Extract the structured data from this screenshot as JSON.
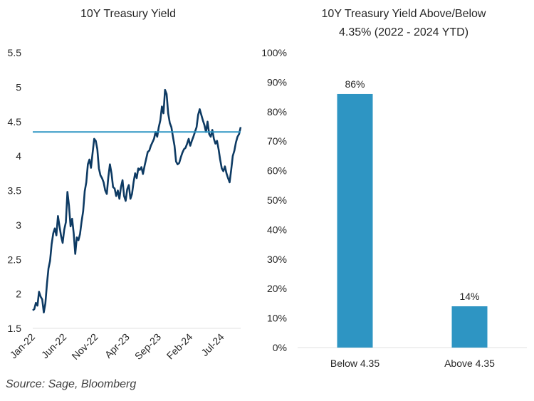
{
  "source_note": "Source: Sage, Bloomberg",
  "colors": {
    "yield_line": "#0d3a63",
    "threshold_line": "#2e95c3",
    "bar": "#2e95c3",
    "gridline": "#e0e0e0"
  },
  "chart_data": [
    {
      "type": "line",
      "title": "10Y Treasury Yield",
      "xlabel": "",
      "ylabel": "",
      "ylim": [
        1.5,
        5.5
      ],
      "yticks": [
        "1.5",
        "2",
        "2.5",
        "3",
        "3.5",
        "4",
        "4.5",
        "5",
        "5.5"
      ],
      "ytick_values": [
        1.5,
        2,
        2.5,
        3,
        3.5,
        4,
        4.5,
        5,
        5.5
      ],
      "xticks": [
        "Jan-22",
        "Jun-22",
        "Nov-22",
        "Apr-23",
        "Sep-23",
        "Feb-24",
        "Jul-24"
      ],
      "xtick_months": [
        0,
        5,
        10,
        15,
        20,
        25,
        30
      ],
      "xlim_months": [
        0,
        33
      ],
      "x_unit": "months since Jan-2022",
      "grid": false,
      "legend": "none",
      "series": [
        {
          "name": "10Y Treasury Yield",
          "x": [
            0,
            0.25,
            0.5,
            0.75,
            1,
            1.25,
            1.5,
            1.75,
            2,
            2.25,
            2.5,
            2.75,
            3,
            3.25,
            3.5,
            3.75,
            4,
            4.25,
            4.5,
            4.75,
            5,
            5.25,
            5.5,
            5.75,
            6,
            6.25,
            6.5,
            6.75,
            7,
            7.25,
            7.5,
            7.75,
            8,
            8.25,
            8.5,
            8.75,
            9,
            9.25,
            9.5,
            9.75,
            10,
            10.25,
            10.5,
            10.75,
            11,
            11.25,
            11.5,
            11.75,
            12,
            12.25,
            12.5,
            12.75,
            13,
            13.25,
            13.5,
            13.75,
            14,
            14.25,
            14.5,
            14.75,
            15,
            15.25,
            15.5,
            15.75,
            16,
            16.25,
            16.5,
            16.75,
            17,
            17.25,
            17.5,
            17.75,
            18,
            18.25,
            18.5,
            18.75,
            19,
            19.25,
            19.5,
            19.75,
            20,
            20.25,
            20.5,
            20.75,
            21,
            21.25,
            21.5,
            21.75,
            22,
            22.25,
            22.5,
            22.75,
            23,
            23.25,
            23.5,
            23.75,
            24,
            24.25,
            24.5,
            24.75,
            25,
            25.25,
            25.5,
            25.75,
            26,
            26.25,
            26.5,
            26.75,
            27,
            27.25,
            27.5,
            27.75,
            28,
            28.25,
            28.5,
            28.75,
            29,
            29.25,
            29.5,
            29.75,
            30,
            30.25,
            30.5,
            30.75,
            31,
            31.25,
            31.5,
            31.75,
            32,
            32.25,
            32.5,
            32.75,
            33
          ],
          "y": [
            1.76,
            1.78,
            1.87,
            1.83,
            2.03,
            1.96,
            1.92,
            1.73,
            1.86,
            2.14,
            2.37,
            2.48,
            2.72,
            2.88,
            2.95,
            2.85,
            3.13,
            2.98,
            2.84,
            2.74,
            2.93,
            3.04,
            3.48,
            3.28,
            2.98,
            3.09,
            2.88,
            2.58,
            2.82,
            2.78,
            2.87,
            3.05,
            3.2,
            3.49,
            3.62,
            3.88,
            3.95,
            3.83,
            4.05,
            4.25,
            4.22,
            4.1,
            3.82,
            3.72,
            3.68,
            3.62,
            3.5,
            3.45,
            3.7,
            3.88,
            3.75,
            3.55,
            3.53,
            3.42,
            3.5,
            3.38,
            3.55,
            3.65,
            3.42,
            3.35,
            3.52,
            3.58,
            3.38,
            3.45,
            3.62,
            3.75,
            3.68,
            3.82,
            3.8,
            3.84,
            3.74,
            3.86,
            3.96,
            4.06,
            4.08,
            4.15,
            4.2,
            4.25,
            4.35,
            4.28,
            4.42,
            4.52,
            4.72,
            4.62,
            4.96,
            4.9,
            4.62,
            4.48,
            4.42,
            4.28,
            4.15,
            3.92,
            3.88,
            3.9,
            3.98,
            4.05,
            4.1,
            4.12,
            4.18,
            4.25,
            4.15,
            4.22,
            4.28,
            4.35,
            4.42,
            4.6,
            4.68,
            4.6,
            4.52,
            4.45,
            4.35,
            4.5,
            4.32,
            4.28,
            4.38,
            4.25,
            4.18,
            4.22,
            4.1,
            3.95,
            3.82,
            3.78,
            3.85,
            3.75,
            3.68,
            3.62,
            3.8,
            4.0,
            4.08,
            4.2,
            4.28,
            4.32,
            4.42
          ]
        },
        {
          "name": "4.35 threshold",
          "x": [
            0,
            33
          ],
          "y": [
            4.35,
            4.35
          ]
        }
      ]
    },
    {
      "type": "bar",
      "title": "10Y Treasury Yield Above/Below 4.35% (2022 - 2024 YTD)",
      "title_lines": [
        "10Y Treasury Yield Above/Below",
        "4.35% (2022 - 2024 YTD)"
      ],
      "categories": [
        "Below 4.35",
        "Above 4.35"
      ],
      "values": [
        86,
        14
      ],
      "data_labels": [
        "86%",
        "14%"
      ],
      "xlabel": "",
      "ylabel": "",
      "ylim": [
        0,
        100
      ],
      "yticks": [
        "0%",
        "10%",
        "20%",
        "30%",
        "40%",
        "50%",
        "60%",
        "70%",
        "80%",
        "90%",
        "100%"
      ],
      "ytick_values": [
        0,
        10,
        20,
        30,
        40,
        50,
        60,
        70,
        80,
        90,
        100
      ],
      "grid": false,
      "legend": "none"
    }
  ]
}
